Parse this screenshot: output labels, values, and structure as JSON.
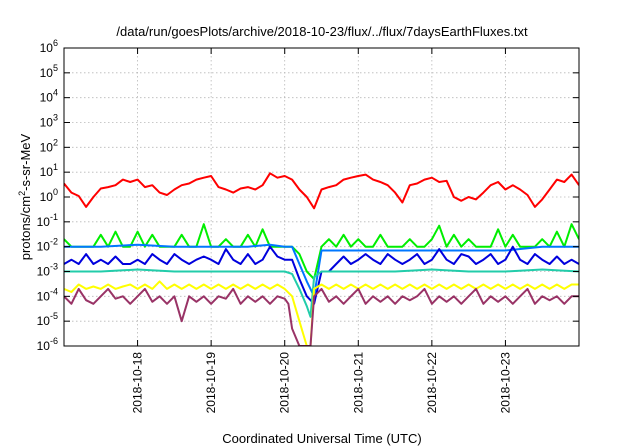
{
  "chart_data": {
    "type": "line",
    "title": "/data/run/goesPlots/archive/2018-10-23/flux/../flux/7daysEarthFluxes.txt",
    "xlabel": "Coordinated Universal Time (UTC)",
    "ylabel": "protons/cm2-s-sr-MeV",
    "ylabel_base": "protons/cm",
    "ylabel_sup": "2",
    "ylabel_rest": "-s-sr-MeV",
    "yscale": "log",
    "ylim": [
      1e-06,
      1000000.0
    ],
    "xlim": [
      0,
      7
    ],
    "grid": true,
    "x_ticks": [
      {
        "x": 1,
        "label": "2018-10-18"
      },
      {
        "x": 2,
        "label": "2018-10-19"
      },
      {
        "x": 3,
        "label": "2018-10-20"
      },
      {
        "x": 4,
        "label": "2018-10-21"
      },
      {
        "x": 5,
        "label": "2018-10-22"
      },
      {
        "x": 6,
        "label": "2018-10-23"
      }
    ],
    "y_ticks": [
      {
        "exp": -6,
        "label": "10",
        "sup": "-6"
      },
      {
        "exp": -5,
        "label": "10",
        "sup": "-5"
      },
      {
        "exp": -4,
        "label": "10",
        "sup": "-4"
      },
      {
        "exp": -3,
        "label": "10",
        "sup": "-3"
      },
      {
        "exp": -2,
        "label": "10",
        "sup": "-2"
      },
      {
        "exp": -1,
        "label": "10",
        "sup": "-1"
      },
      {
        "exp": 0,
        "label": "10",
        "sup": "0"
      },
      {
        "exp": 1,
        "label": "10",
        "sup": "1"
      },
      {
        "exp": 2,
        "label": "10",
        "sup": "2"
      },
      {
        "exp": 3,
        "label": "10",
        "sup": "3"
      },
      {
        "exp": 4,
        "label": "10",
        "sup": "4"
      },
      {
        "exp": 5,
        "label": "10",
        "sup": "5"
      },
      {
        "exp": 6,
        "label": "10",
        "sup": "6"
      }
    ],
    "series": [
      {
        "color": "#ff0000",
        "x": [
          0,
          0.1,
          0.2,
          0.3,
          0.4,
          0.5,
          0.6,
          0.7,
          0.8,
          0.9,
          1.0,
          1.1,
          1.2,
          1.3,
          1.4,
          1.5,
          1.6,
          1.7,
          1.8,
          1.9,
          2.0,
          2.1,
          2.2,
          2.3,
          2.4,
          2.5,
          2.6,
          2.7,
          2.8,
          2.9,
          3.0,
          3.1,
          3.2,
          3.3,
          3.4,
          3.5,
          3.6,
          3.7,
          3.8,
          3.9,
          4.0,
          4.1,
          4.2,
          4.3,
          4.4,
          4.5,
          4.6,
          4.7,
          4.8,
          4.9,
          5.0,
          5.1,
          5.2,
          5.3,
          5.4,
          5.5,
          5.6,
          5.7,
          5.8,
          5.9,
          6.0,
          6.1,
          6.2,
          6.3,
          6.4,
          6.5,
          6.6,
          6.7,
          6.8,
          6.9,
          7.0
        ],
        "y": [
          3.5,
          1.5,
          1.1,
          0.4,
          1.0,
          2.2,
          2.5,
          3.0,
          5.0,
          4.0,
          5.0,
          2.5,
          3.0,
          1.5,
          1.2,
          2.0,
          3.0,
          3.5,
          5.0,
          6.0,
          7.0,
          2.5,
          2.0,
          1.5,
          2.2,
          2.5,
          2.0,
          3.0,
          9.0,
          6.0,
          7.0,
          5.0,
          2.0,
          1.0,
          0.35,
          2.0,
          2.5,
          3.0,
          5.0,
          6.0,
          7.0,
          8.0,
          5.0,
          4.0,
          3.0,
          1.5,
          0.6,
          3.0,
          3.5,
          5.0,
          6.0,
          4.0,
          4.5,
          1.0,
          0.7,
          1.0,
          0.8,
          1.5,
          3.0,
          4.0,
          2.0,
          3.0,
          2.0,
          1.2,
          0.4,
          0.8,
          2.0,
          5.0,
          4.0,
          8.0,
          3.0
        ]
      },
      {
        "color": "#00ee00",
        "x": [
          0,
          0.1,
          0.2,
          0.3,
          0.4,
          0.5,
          0.6,
          0.7,
          0.8,
          0.9,
          1.0,
          1.1,
          1.2,
          1.3,
          1.4,
          1.5,
          1.6,
          1.7,
          1.8,
          1.9,
          2.0,
          2.1,
          2.2,
          2.3,
          2.4,
          2.5,
          2.6,
          2.7,
          2.8,
          2.9,
          3.0,
          3.1,
          3.2,
          3.3,
          3.4,
          3.5,
          3.6,
          3.7,
          3.8,
          3.9,
          4.0,
          4.1,
          4.2,
          4.3,
          4.4,
          4.5,
          4.6,
          4.7,
          4.8,
          4.9,
          5.0,
          5.1,
          5.2,
          5.3,
          5.4,
          5.5,
          5.6,
          5.7,
          5.8,
          5.9,
          6.0,
          6.1,
          6.2,
          6.3,
          6.4,
          6.5,
          6.6,
          6.7,
          6.8,
          6.9,
          7.0
        ],
        "y": [
          0.02,
          0.01,
          0.01,
          0.01,
          0.01,
          0.03,
          0.01,
          0.04,
          0.01,
          0.01,
          0.04,
          0.01,
          0.03,
          0.01,
          0.01,
          0.01,
          0.03,
          0.01,
          0.01,
          0.08,
          0.01,
          0.01,
          0.02,
          0.01,
          0.01,
          0.03,
          0.01,
          0.05,
          0.01,
          0.01,
          0.01,
          0.01,
          0.005,
          0.001,
          0.0005,
          0.01,
          0.02,
          0.01,
          0.03,
          0.01,
          0.02,
          0.01,
          0.01,
          0.03,
          0.01,
          0.01,
          0.01,
          0.02,
          0.01,
          0.01,
          0.02,
          0.07,
          0.01,
          0.03,
          0.01,
          0.02,
          0.01,
          0.01,
          0.01,
          0.05,
          0.01,
          0.03,
          0.01,
          0.01,
          0.01,
          0.02,
          0.01,
          0.04,
          0.01,
          0.08,
          0.02
        ]
      },
      {
        "color": "#0077ff",
        "x": [
          0,
          0.5,
          1.0,
          1.5,
          2.0,
          2.5,
          2.8,
          3.0,
          3.1,
          3.2,
          3.3,
          3.4,
          3.5,
          4.0,
          4.5,
          5.0,
          5.5,
          6.0,
          6.5,
          7.0
        ],
        "y": [
          0.01,
          0.01,
          0.012,
          0.01,
          0.01,
          0.01,
          0.012,
          0.01,
          0.01,
          0.002,
          0.0004,
          0.0001,
          0.007,
          0.007,
          0.007,
          0.007,
          0.007,
          0.007,
          0.01,
          0.01
        ]
      },
      {
        "color": "#0000dd",
        "x": [
          0,
          0.1,
          0.2,
          0.3,
          0.4,
          0.5,
          0.6,
          0.7,
          0.8,
          0.9,
          1.0,
          1.1,
          1.2,
          1.3,
          1.4,
          1.5,
          1.6,
          1.7,
          1.8,
          1.9,
          2.0,
          2.1,
          2.2,
          2.3,
          2.4,
          2.5,
          2.6,
          2.7,
          2.8,
          2.9,
          3.0,
          3.1,
          3.2,
          3.3,
          3.4,
          3.5,
          3.6,
          3.7,
          3.8,
          3.9,
          4.0,
          4.1,
          4.2,
          4.3,
          4.4,
          4.5,
          4.6,
          4.7,
          4.8,
          4.9,
          5.0,
          5.1,
          5.2,
          5.3,
          5.4,
          5.5,
          5.6,
          5.7,
          5.8,
          5.9,
          6.0,
          6.1,
          6.2,
          6.3,
          6.4,
          6.5,
          6.6,
          6.7,
          6.8,
          6.9,
          7.0
        ],
        "y": [
          0.002,
          0.003,
          0.002,
          0.005,
          0.002,
          0.003,
          0.002,
          0.004,
          0.002,
          0.002,
          0.003,
          0.002,
          0.005,
          0.003,
          0.002,
          0.005,
          0.003,
          0.002,
          0.003,
          0.004,
          0.003,
          0.002,
          0.008,
          0.003,
          0.002,
          0.005,
          0.002,
          0.003,
          0.01,
          0.004,
          0.003,
          0.003,
          0.0005,
          0.0001,
          5e-05,
          0.001,
          0.001,
          0.002,
          0.004,
          0.002,
          0.003,
          0.005,
          0.003,
          0.002,
          0.005,
          0.003,
          0.002,
          0.003,
          0.005,
          0.002,
          0.003,
          0.008,
          0.003,
          0.002,
          0.005,
          0.004,
          0.002,
          0.003,
          0.005,
          0.002,
          0.003,
          0.01,
          0.003,
          0.002,
          0.005,
          0.003,
          0.002,
          0.004,
          0.002,
          0.003,
          0.002
        ]
      },
      {
        "color": "#22ccaa",
        "x": [
          0,
          0.5,
          1.0,
          1.5,
          2.0,
          2.5,
          3.0,
          3.1,
          3.2,
          3.3,
          3.35,
          3.4,
          3.5,
          4.0,
          4.5,
          5.0,
          5.5,
          6.0,
          6.5,
          7.0
        ],
        "y": [
          0.001,
          0.001,
          0.0012,
          0.001,
          0.001,
          0.001,
          0.001,
          0.0008,
          0.0002,
          4e-05,
          1.5e-05,
          0.0006,
          0.001,
          0.001,
          0.001,
          0.0012,
          0.001,
          0.001,
          0.0012,
          0.001
        ]
      },
      {
        "color": "#ffff00",
        "x": [
          0,
          0.1,
          0.2,
          0.3,
          0.4,
          0.5,
          0.6,
          0.7,
          0.8,
          0.9,
          1.0,
          1.1,
          1.2,
          1.3,
          1.4,
          1.5,
          1.6,
          1.7,
          1.8,
          1.9,
          2.0,
          2.1,
          2.2,
          2.3,
          2.4,
          2.5,
          2.6,
          2.7,
          2.8,
          2.9,
          3.0,
          3.1,
          3.2,
          3.3,
          3.35,
          3.4,
          3.5,
          3.6,
          3.7,
          3.8,
          3.9,
          4.0,
          4.1,
          4.2,
          4.3,
          4.4,
          4.5,
          4.6,
          4.7,
          4.8,
          4.9,
          5.0,
          5.1,
          5.2,
          5.3,
          5.4,
          5.5,
          5.6,
          5.7,
          5.8,
          5.9,
          6.0,
          6.1,
          6.2,
          6.3,
          6.4,
          6.5,
          6.6,
          6.7,
          6.8,
          6.9,
          7.0
        ],
        "y": [
          0.0002,
          0.00015,
          0.0003,
          0.0002,
          0.00025,
          0.0002,
          0.0003,
          0.0002,
          0.00025,
          0.0003,
          0.0002,
          0.0003,
          0.0002,
          0.0004,
          0.0002,
          0.0003,
          0.0002,
          0.0003,
          0.0002,
          0.0003,
          0.0002,
          0.0003,
          0.0002,
          0.0003,
          0.0002,
          0.0003,
          0.0002,
          0.0003,
          0.0002,
          0.0003,
          0.0002,
          0.0001,
          1e-05,
          1e-06,
          1e-06,
          0.0002,
          0.0003,
          0.0002,
          0.0003,
          0.0002,
          0.0003,
          0.0002,
          0.0003,
          0.0002,
          0.0003,
          0.0002,
          0.0003,
          0.0002,
          0.0003,
          0.0002,
          0.0003,
          0.0002,
          0.0003,
          0.0002,
          0.0003,
          0.0002,
          0.0003,
          0.0002,
          0.0003,
          0.0002,
          0.0003,
          0.0002,
          0.0003,
          0.0002,
          0.0003,
          0.0002,
          0.0003,
          0.0002,
          0.0003,
          0.0002,
          0.0003,
          0.0003
        ]
      },
      {
        "color": "#993366",
        "x": [
          0,
          0.1,
          0.2,
          0.3,
          0.4,
          0.5,
          0.6,
          0.7,
          0.8,
          0.9,
          1.0,
          1.1,
          1.2,
          1.3,
          1.4,
          1.5,
          1.6,
          1.7,
          1.8,
          1.9,
          2.0,
          2.1,
          2.2,
          2.3,
          2.4,
          2.5,
          2.6,
          2.7,
          2.8,
          2.9,
          3.0,
          3.05,
          3.1,
          3.2,
          3.3,
          3.35,
          3.4,
          3.5,
          3.6,
          3.7,
          3.8,
          3.9,
          4.0,
          4.1,
          4.2,
          4.3,
          4.4,
          4.5,
          4.6,
          4.7,
          4.8,
          4.9,
          5.0,
          5.1,
          5.2,
          5.3,
          5.4,
          5.5,
          5.6,
          5.7,
          5.8,
          5.9,
          6.0,
          6.1,
          6.2,
          6.3,
          6.4,
          6.5,
          6.6,
          6.7,
          6.8,
          6.9,
          7.0
        ],
        "y": [
          0.0001,
          5e-05,
          0.0002,
          7e-05,
          5e-05,
          0.0001,
          0.0002,
          8e-05,
          0.0001,
          5e-05,
          0.0001,
          0.0002,
          6e-05,
          0.0001,
          5e-05,
          0.0001,
          1e-05,
          0.0001,
          6e-05,
          0.0001,
          5e-05,
          0.0001,
          8e-05,
          0.0002,
          5e-05,
          0.0001,
          6e-05,
          0.0001,
          5e-05,
          0.0001,
          8e-05,
          5e-05,
          5e-06,
          1e-06,
          1e-06,
          1e-06,
          0.0001,
          0.0002,
          6e-05,
          0.0001,
          5e-05,
          0.0001,
          0.0002,
          5e-05,
          0.0001,
          6e-05,
          0.0001,
          5e-05,
          0.0001,
          7e-05,
          0.0001,
          0.0002,
          5e-05,
          0.0001,
          6e-05,
          0.0001,
          5e-05,
          0.0001,
          0.0002,
          5e-05,
          0.0001,
          6e-05,
          0.0001,
          5e-05,
          0.0001,
          0.0002,
          5e-05,
          0.0001,
          7e-05,
          0.0001,
          5e-05,
          0.0001,
          0.0001
        ]
      }
    ]
  }
}
